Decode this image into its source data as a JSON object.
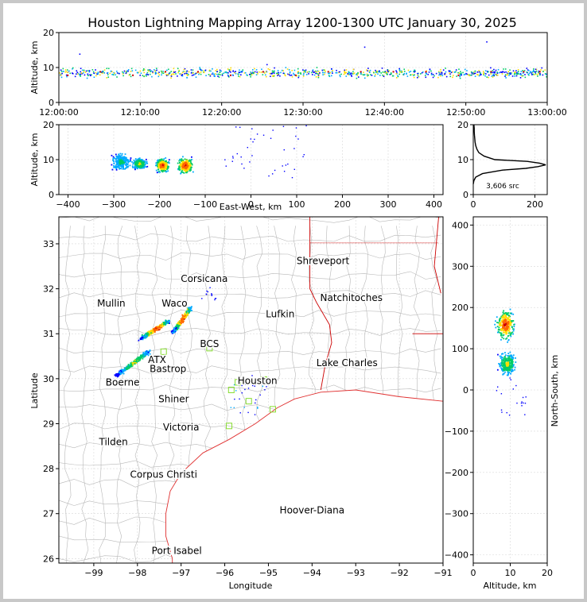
{
  "title": "Houston Lightning Mapping Array 1200-1300 UTC January 30, 2025",
  "colors": {
    "density_scale": [
      "#0000ff",
      "#00aaff",
      "#00cc66",
      "#ffdd00",
      "#ff6600",
      "#cc0000"
    ],
    "coast": "#e03030",
    "state_border": "#cc0000",
    "county": "#b8b8b8",
    "station": "#88dd33",
    "window_bg": "#c8c8c8"
  },
  "chart_data": [
    {
      "id": "time_height",
      "type": "scatter",
      "xlabel": "",
      "ylabel": "Altitude, km",
      "xlim": [
        "12:00:00",
        "13:00:00"
      ],
      "ylim": [
        0,
        20
      ],
      "xticks": [
        "12:00:00",
        "12:10:00",
        "12:20:00",
        "12:30:00",
        "12:40:00",
        "12:50:00",
        "13:00:00"
      ],
      "yticks": [
        "0",
        "10",
        "20"
      ],
      "series": [
        {
          "x_minutes": [
            1,
            5,
            9,
            13,
            17,
            21,
            25,
            29,
            33,
            37,
            41,
            45,
            49,
            53,
            57,
            59
          ],
          "altitude_km": [
            8,
            9,
            8,
            9,
            9,
            8,
            9,
            8,
            9,
            9,
            9,
            9,
            8,
            9,
            9,
            9
          ]
        }
      ],
      "outliers": [
        {
          "x_minutes": 52.5,
          "altitude_km": 17.5
        },
        {
          "x_minutes": 25.5,
          "altitude_km": 11
        },
        {
          "x_minutes": 37.5,
          "altitude_km": 16
        },
        {
          "x_minutes": 2.5,
          "altitude_km": 14
        }
      ]
    },
    {
      "id": "east_west_altitude",
      "type": "scatter",
      "xlabel": "East-West, km",
      "ylabel": "Altitude, km",
      "xlim": [
        -420,
        420
      ],
      "ylim": [
        0,
        20
      ],
      "xticks": [
        "−400",
        "−300",
        "−200",
        "−100",
        "0",
        "100",
        "200",
        "300",
        "400"
      ],
      "yticks": [
        "0",
        "10",
        "20"
      ],
      "clusters": [
        {
          "x_center": -285,
          "x_half_width": 25,
          "altitude_center": 9.5,
          "altitude_half_height": 3,
          "peak": "green"
        },
        {
          "x_center": -245,
          "x_half_width": 20,
          "altitude_center": 9,
          "altitude_half_height": 2,
          "peak": "yellow"
        },
        {
          "x_center": -195,
          "x_half_width": 18,
          "altitude_center": 8.5,
          "altitude_half_height": 2.5,
          "peak": "red"
        },
        {
          "x_center": -145,
          "x_half_width": 22,
          "altitude_center": 8.5,
          "altitude_half_height": 3,
          "peak": "red"
        }
      ]
    },
    {
      "id": "altitude_histogram",
      "type": "line",
      "annotation": "3,606 src",
      "xlim": [
        0,
        240
      ],
      "ylim": [
        0,
        20
      ],
      "xticks": [
        "0",
        "200"
      ],
      "yticks": [
        "0",
        "10",
        "20"
      ],
      "x_count": [
        0,
        2,
        8,
        30,
        95,
        170,
        210,
        235,
        215,
        175,
        70,
        35,
        18,
        12,
        8,
        6,
        5,
        4,
        3,
        3,
        2
      ],
      "altitude_km": [
        3,
        4,
        5,
        6,
        7,
        7.5,
        8,
        8.5,
        9,
        9.5,
        10,
        11,
        12,
        13,
        14,
        15,
        16,
        17,
        18,
        19,
        20
      ]
    },
    {
      "id": "plan_map",
      "type": "scatter",
      "xlabel": "Longitude",
      "ylabel": "Latitude",
      "xlim": [
        -99.8,
        -91
      ],
      "ylim": [
        25.9,
        33.6
      ],
      "xticks": [
        "−99",
        "−98",
        "−97",
        "−96",
        "−95",
        "−94",
        "−93",
        "−92",
        "−91"
      ],
      "yticks": [
        "26",
        "27",
        "28",
        "29",
        "30",
        "31",
        "32",
        "33"
      ],
      "cities": [
        {
          "name": "Shreveport",
          "lon": -93.75,
          "lat": 32.55,
          "color": "#000000"
        },
        {
          "name": "Corsicana",
          "lon": -96.47,
          "lat": 32.15,
          "color": "#000000"
        },
        {
          "name": "Mullin",
          "lon": -98.6,
          "lat": 31.6,
          "color": "#ff8833"
        },
        {
          "name": "Natchitoches",
          "lon": -93.1,
          "lat": 31.73,
          "color": "#000000"
        },
        {
          "name": "Waco",
          "lon": -97.15,
          "lat": 31.6,
          "color": "#000000"
        },
        {
          "name": "Lufkin",
          "lon": -94.73,
          "lat": 31.37,
          "color": "#000000"
        },
        {
          "name": "BCS",
          "lon": -96.35,
          "lat": 30.7,
          "color": "#990000"
        },
        {
          "name": "ATX",
          "lon": -97.55,
          "lat": 30.35,
          "color": "#ff8833"
        },
        {
          "name": "Bastrop",
          "lon": -97.3,
          "lat": 30.15,
          "color": "#000000"
        },
        {
          "name": "Lake Charles",
          "lon": -93.2,
          "lat": 30.28,
          "color": "#000000"
        },
        {
          "name": "Houston",
          "lon": -95.25,
          "lat": 29.88,
          "color": "#ff9900"
        },
        {
          "name": "Boerne",
          "lon": -98.34,
          "lat": 29.85,
          "color": "#000000"
        },
        {
          "name": "Shiner",
          "lon": -97.17,
          "lat": 29.48,
          "color": "#000000"
        },
        {
          "name": "Victoria",
          "lon": -97.0,
          "lat": 28.85,
          "color": "#000000"
        },
        {
          "name": "Tilden",
          "lon": -98.55,
          "lat": 28.52,
          "color": "#000000"
        },
        {
          "name": "Corpus Christi",
          "lon": -97.4,
          "lat": 27.8,
          "color": "#000000"
        },
        {
          "name": "Hoover-Diana",
          "lon": -94.0,
          "lat": 27.0,
          "color": "#0000cc"
        },
        {
          "name": "Port Isabel",
          "lon": -97.1,
          "lat": 26.1,
          "color": "#000000"
        }
      ],
      "stations": [
        {
          "lon": -97.4,
          "lat": 30.6
        },
        {
          "lon": -96.35,
          "lat": 30.68
        },
        {
          "lon": -95.7,
          "lat": 29.92
        },
        {
          "lon": -95.1,
          "lat": 29.98
        },
        {
          "lon": -95.45,
          "lat": 29.5
        },
        {
          "lon": -94.9,
          "lat": 29.32
        },
        {
          "lon": -95.9,
          "lat": 28.95
        },
        {
          "lon": -95.85,
          "lat": 29.75
        }
      ],
      "storm_bands": [
        {
          "lon_start": -98.5,
          "lat_start": 30.08,
          "lon_end": -97.75,
          "lat_end": 30.62,
          "strength": "medium"
        },
        {
          "lon_start": -97.95,
          "lat_start": 30.9,
          "lon_end": -97.3,
          "lat_end": 31.3,
          "strength": "strong"
        },
        {
          "lon_start": -97.2,
          "lat_start": 31.05,
          "lon_end": -96.8,
          "lat_end": 31.58,
          "strength": "strong"
        }
      ]
    },
    {
      "id": "altitude_north_south",
      "type": "scatter",
      "xlabel": "Altitude, km",
      "ylabel": "North-South, km",
      "xlim": [
        0,
        20
      ],
      "ylim": [
        -420,
        420
      ],
      "xticks": [
        "0",
        "10",
        "20"
      ],
      "yticks": [
        "−400",
        "−300",
        "−200",
        "−100",
        "0",
        "100",
        "200",
        "300",
        "400"
      ],
      "clusters": [
        {
          "altitude_center": 8.5,
          "altitude_half_width": 3,
          "ns_center": 160,
          "ns_half_height": 45,
          "peak": "red"
        },
        {
          "altitude_center": 9,
          "altitude_half_width": 3,
          "ns_center": 65,
          "ns_half_height": 35,
          "peak": "yellow"
        }
      ]
    }
  ]
}
